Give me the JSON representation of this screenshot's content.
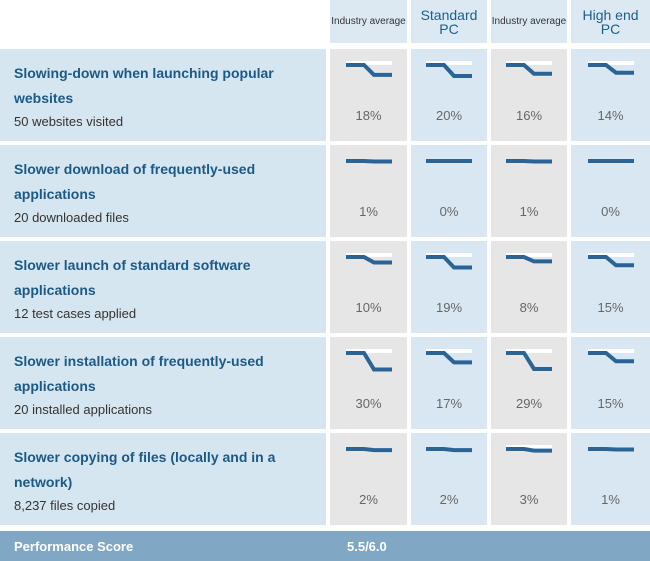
{
  "columns": [
    {
      "label": "Industry average",
      "style": "small"
    },
    {
      "label": "Standard PC",
      "style": "big"
    },
    {
      "label": "Industry average",
      "style": "small"
    },
    {
      "label": "High end PC",
      "style": "big"
    }
  ],
  "rows": [
    {
      "title": "Slowing-down when launching popular websites",
      "subtitle": "50 websites visited",
      "values": [
        "18%",
        "20%",
        "16%",
        "14%"
      ],
      "levels": [
        0.18,
        0.2,
        0.16,
        0.14
      ]
    },
    {
      "title": "Slower download of frequently-used applications",
      "subtitle": "20 downloaded files",
      "values": [
        "1%",
        "0%",
        "1%",
        "0%"
      ],
      "levels": [
        0.01,
        0.0,
        0.01,
        0.0
      ]
    },
    {
      "title": "Slower launch of standard software applications",
      "subtitle": "12 test cases applied",
      "values": [
        "10%",
        "19%",
        "8%",
        "15%"
      ],
      "levels": [
        0.1,
        0.19,
        0.08,
        0.15
      ]
    },
    {
      "title": "Slower installation of frequently-used applications",
      "subtitle": "20 installed applications",
      "values": [
        "30%",
        "17%",
        "29%",
        "15%"
      ],
      "levels": [
        0.3,
        0.17,
        0.29,
        0.15
      ]
    },
    {
      "title": "Slower copying of files (locally and in a network)",
      "subtitle": "8,237 files copied",
      "values": [
        "2%",
        "2%",
        "3%",
        "1%"
      ],
      "levels": [
        0.02,
        0.02,
        0.03,
        0.01
      ]
    }
  ],
  "footer": {
    "label": "Performance Score",
    "score": "5.5/6.0"
  },
  "colors": {
    "line": "#2a6496",
    "header_bg": "#dce9f2",
    "gray_cell": "#e6e6e6",
    "blue_cell": "#d8e7f1",
    "footer_bg": "#80a8c5"
  }
}
